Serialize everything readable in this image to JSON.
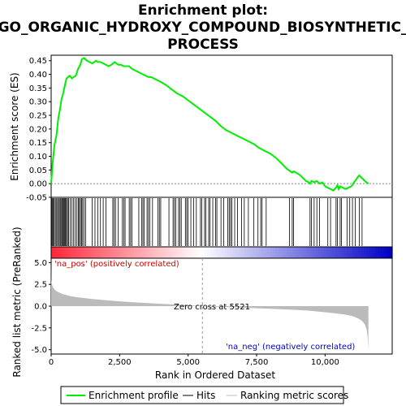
{
  "chart_data": {
    "type": "line",
    "title_lines": [
      "Enrichment plot:",
      "GO_ORGANIC_HYDROXY_COMPOUND_BIOSYNTHETIC_",
      "PROCESS"
    ],
    "top_panel": {
      "ylabel": "Enrichment score (ES)",
      "ylim": [
        -0.05,
        0.47
      ],
      "yticks": [
        -0.05,
        0.0,
        0.05,
        0.1,
        0.15,
        0.2,
        0.25,
        0.3,
        0.35,
        0.4,
        0.45
      ],
      "ytick_labels": [
        "-0.05",
        "0.00",
        "0.05",
        "0.10",
        "0.15",
        "0.20",
        "0.25",
        "0.30",
        "0.35",
        "0.40",
        "0.45"
      ],
      "series": [
        {
          "name": "Enrichment profile",
          "color": "#00ee00",
          "x": [
            0,
            50,
            120,
            200,
            260,
            320,
            380,
            440,
            500,
            560,
            620,
            680,
            760,
            820,
            900,
            980,
            1040,
            1080,
            1120,
            1200,
            1300,
            1400,
            1500,
            1580,
            1640,
            1700,
            1800,
            1900,
            2000,
            2100,
            2200,
            2260,
            2320,
            2380,
            2450,
            2550,
            2650,
            2750,
            2850,
            2950,
            3050,
            3150,
            3250,
            3350,
            3450,
            3550,
            3650,
            3750,
            3850,
            3950,
            4050,
            4200,
            4400,
            4600,
            4800,
            5000,
            5200,
            5400,
            5600,
            5800,
            6000,
            6200,
            6400,
            6600,
            6800,
            7000,
            7200,
            7400,
            7600,
            7800,
            8000,
            8200,
            8400,
            8600,
            8800,
            8850,
            8950,
            9100,
            9200,
            9300,
            9400,
            9450,
            9500,
            9600,
            9700,
            9800,
            9900,
            10000,
            10100,
            10200,
            10300,
            10400,
            10450,
            10500,
            10550,
            10650,
            10750,
            10850,
            10950,
            11000,
            11050,
            11100,
            11200,
            11250,
            11300,
            11400,
            11500,
            11580
          ],
          "y": [
            0.0,
            0.07,
            0.14,
            0.18,
            0.24,
            0.27,
            0.31,
            0.33,
            0.36,
            0.385,
            0.39,
            0.395,
            0.385,
            0.39,
            0.395,
            0.42,
            0.43,
            0.44,
            0.455,
            0.46,
            0.45,
            0.445,
            0.44,
            0.445,
            0.45,
            0.445,
            0.445,
            0.44,
            0.435,
            0.43,
            0.435,
            0.44,
            0.445,
            0.44,
            0.435,
            0.435,
            0.43,
            0.43,
            0.43,
            0.42,
            0.415,
            0.41,
            0.405,
            0.4,
            0.395,
            0.39,
            0.39,
            0.385,
            0.38,
            0.375,
            0.37,
            0.36,
            0.345,
            0.33,
            0.32,
            0.305,
            0.29,
            0.275,
            0.26,
            0.245,
            0.23,
            0.21,
            0.195,
            0.185,
            0.175,
            0.165,
            0.155,
            0.145,
            0.13,
            0.12,
            0.11,
            0.095,
            0.075,
            0.055,
            0.04,
            0.045,
            0.04,
            0.03,
            0.02,
            0.01,
            0.005,
            0.0,
            0.01,
            0.005,
            0.01,
            0.0,
            0.005,
            -0.01,
            -0.015,
            -0.02,
            -0.025,
            -0.015,
            -0.005,
            -0.02,
            -0.01,
            -0.015,
            -0.02,
            -0.015,
            -0.01,
            -0.005,
            0.005,
            0.01,
            0.025,
            0.03,
            0.025,
            0.015,
            0.005,
            0.0
          ]
        }
      ]
    },
    "hits": [
      15,
      40,
      75,
      110,
      150,
      185,
      230,
      270,
      300,
      345,
      380,
      410,
      440,
      470,
      500,
      530,
      560,
      600,
      640,
      700,
      760,
      820,
      880,
      940,
      990,
      1030,
      1070,
      1110,
      1150,
      1200,
      1260,
      1500,
      1600,
      1700,
      1800,
      1900,
      2000,
      2250,
      2300,
      2350,
      2450,
      2600,
      2650,
      2700,
      2850,
      2900,
      2950,
      3200,
      3300,
      3350,
      3400,
      3500,
      3550,
      3600,
      3700,
      3900,
      3950,
      4000,
      4300,
      4450,
      4500,
      4550,
      4650,
      4700,
      4750,
      4900,
      4950,
      5000,
      5100,
      5200,
      5300,
      5450,
      5500,
      5600,
      5650,
      5750,
      5800,
      5900,
      6000,
      6050,
      6200,
      6300,
      6450,
      6500,
      6550,
      6600,
      6700,
      6800,
      6950,
      7050,
      7200,
      7400,
      7550,
      7650,
      7700,
      7850,
      8700,
      8800,
      8850,
      9450,
      9500,
      9600,
      9700,
      9800,
      10100,
      10200,
      10400,
      10450,
      10550,
      10600,
      10800,
      10900,
      11000,
      11100,
      11250,
      11350
    ],
    "bottom_panel": {
      "ylabel": "Ranked list metric (PreRanked)",
      "xlabel": "Rank in Ordered Dataset",
      "ylim": [
        -5.5,
        5.5
      ],
      "yticks": [
        -5.0,
        -2.5,
        0.0,
        2.5,
        5.0
      ],
      "ytick_labels": [
        "-5.0",
        "-2.5",
        "0.0",
        "2.5",
        "5.0"
      ],
      "xlim": [
        0,
        12450
      ],
      "xticks": [
        0,
        2500,
        5000,
        7500,
        10000
      ],
      "xtick_labels": [
        "0",
        "2,500",
        "5,000",
        "7,500",
        "10,000"
      ],
      "metric_x": [
        0,
        5,
        20,
        50,
        100,
        200,
        400,
        700,
        1000,
        1500,
        2000,
        2500,
        3000,
        4000,
        5000,
        5521,
        6000,
        7000,
        8000,
        9000,
        9500,
        10000,
        10500,
        10800,
        11000,
        11200,
        11350,
        11450,
        11520,
        11560,
        11580
      ],
      "metric_y": [
        5.2,
        3.0,
        2.6,
        2.3,
        2.0,
        1.7,
        1.4,
        1.15,
        1.0,
        0.82,
        0.68,
        0.55,
        0.45,
        0.27,
        0.1,
        0.0,
        -0.07,
        -0.18,
        -0.3,
        -0.45,
        -0.55,
        -0.7,
        -0.88,
        -1.0,
        -1.15,
        -1.4,
        -1.7,
        -2.1,
        -2.7,
        -3.8,
        -5.0
      ]
    },
    "annotations": {
      "pos_label": "'na_pos' (positively correlated)",
      "neg_label": "'na_neg' (negatively correlated)",
      "zero_cross": "Zero cross at 5521",
      "zero_cross_x": 5521
    },
    "legend": {
      "placement": "bottom",
      "entries": [
        {
          "label": "Enrichment profile",
          "color": "#00ee00"
        },
        {
          "label": "Hits",
          "color": "#000000"
        },
        {
          "label": "Ranking metric scores",
          "color": "#bbbbbb"
        }
      ]
    }
  }
}
